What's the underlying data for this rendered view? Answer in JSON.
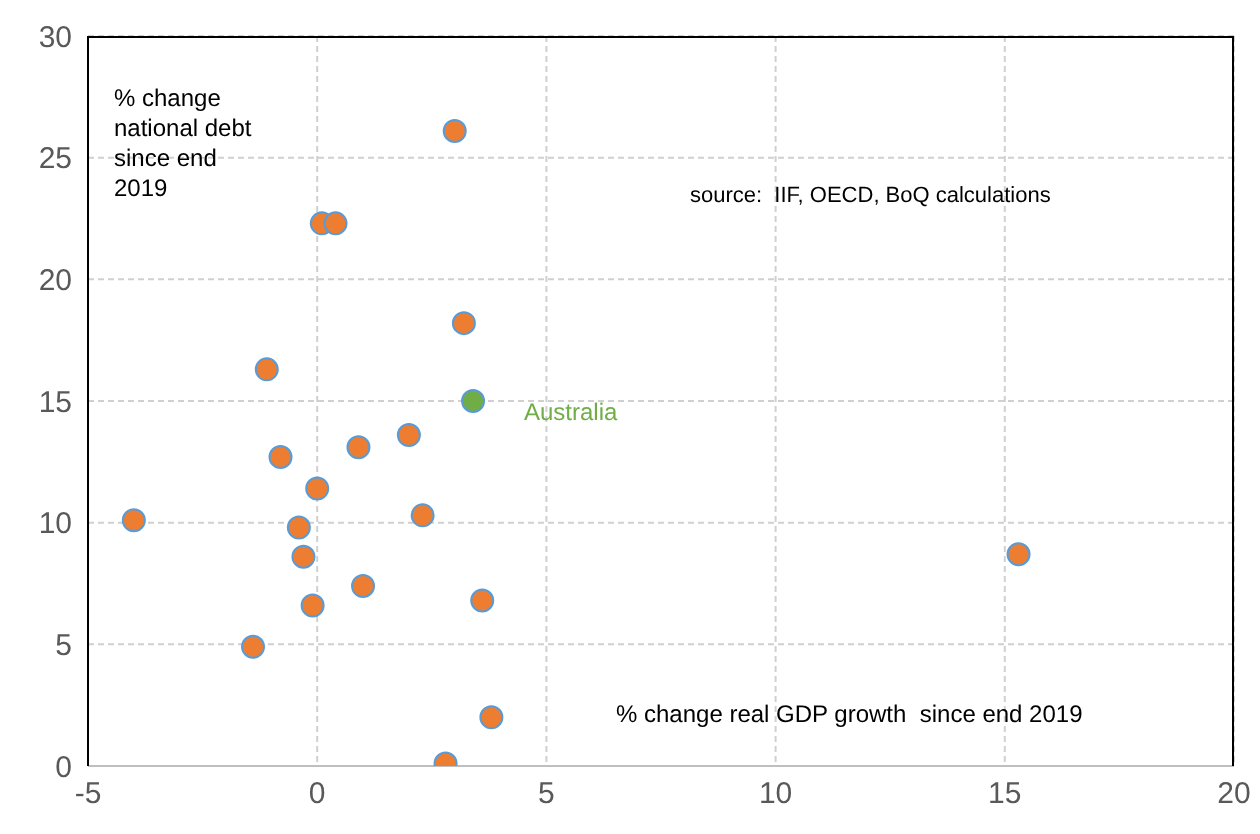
{
  "chart_data": {
    "type": "scatter",
    "xlabel": "% change real GDP growth  since end 2019",
    "ylabel": "% change national debt since end 2019",
    "annotations": [
      "source:  IIF, OECD, BoQ calculations"
    ],
    "xlim": [
      -5,
      20
    ],
    "xticks": [
      -5,
      0,
      5,
      10,
      15,
      20
    ],
    "ylim": [
      0,
      30
    ],
    "yticks": [
      0,
      5,
      10,
      15,
      20,
      25,
      30
    ],
    "grid": true,
    "marker": "circle",
    "series": [
      {
        "color": "#ed7d31",
        "x": [
          -4.0,
          -1.1,
          -0.8,
          0.0,
          -0.4,
          -0.3,
          -0.1,
          -1.4,
          0.1,
          0.4,
          3.0,
          3.2,
          0.9,
          2.0,
          2.3,
          1.0,
          3.6,
          3.8,
          2.8,
          15.3
        ],
        "values": [
          10.1,
          16.3,
          12.7,
          11.4,
          9.8,
          8.6,
          6.6,
          4.9,
          22.3,
          22.3,
          26.1,
          18.2,
          13.1,
          13.6,
          10.3,
          7.4,
          6.8,
          2.0,
          0.1,
          8.7
        ]
      },
      {
        "name": "Australia",
        "color": "#70ad47",
        "x": [
          3.4
        ],
        "values": [
          15.0
        ]
      }
    ]
  }
}
